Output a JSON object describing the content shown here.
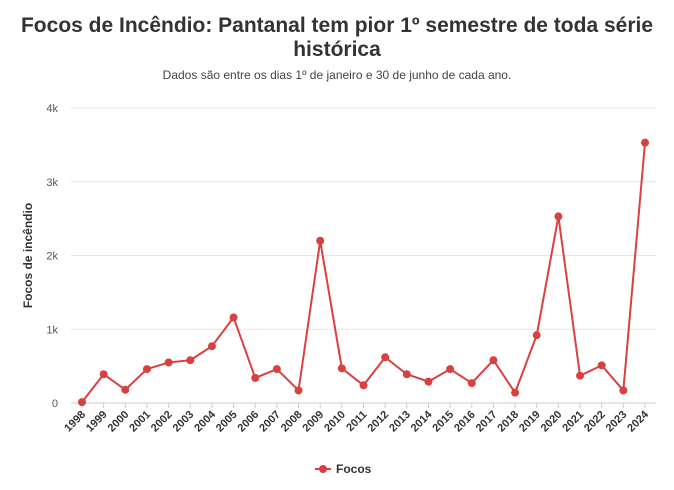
{
  "chart_data": {
    "type": "line",
    "title": "Focos de Incêndio: Pantanal tem pior 1º semestre de toda série histórica",
    "subtitle": "Dados são entre os dias 1º de janeiro e 30 de junho de cada ano.",
    "ylabel": "Focos de incêndio",
    "xlabel": "",
    "ylim": [
      0,
      4000
    ],
    "yticks": [
      "0",
      "1k",
      "2k",
      "3k",
      "4k"
    ],
    "grid": true,
    "legend_position": "bottom-center",
    "color": "#d94040",
    "categories": [
      "1998",
      "1999",
      "2000",
      "2001",
      "2002",
      "2003",
      "2004",
      "2005",
      "2006",
      "2007",
      "2008",
      "2009",
      "2010",
      "2011",
      "2012",
      "2013",
      "2014",
      "2015",
      "2016",
      "2017",
      "2018",
      "2019",
      "2020",
      "2021",
      "2022",
      "2023",
      "2024"
    ],
    "series": [
      {
        "name": "Focos",
        "values": [
          12,
          390,
          180,
          460,
          550,
          580,
          770,
          1160,
          340,
          460,
          170,
          2200,
          470,
          240,
          620,
          390,
          290,
          460,
          270,
          580,
          140,
          920,
          2530,
          370,
          510,
          170,
          3530
        ]
      }
    ]
  }
}
